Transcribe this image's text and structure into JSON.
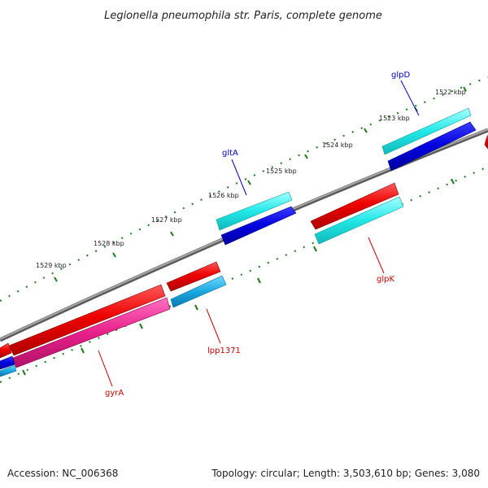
{
  "title": "Legionella pneumophila str. Paris, complete genome",
  "footer": {
    "accession": "Accession: NC_006368",
    "summary": "Topology: circular; Length: 3,503,610 bp; Genes: 3,080"
  },
  "ticks": [
    {
      "label": "1522 kbp"
    },
    {
      "label": "1523 kbp"
    },
    {
      "label": "1524 kbp"
    },
    {
      "label": "1525 kbp"
    },
    {
      "label": "1526 kbp"
    },
    {
      "label": "1527 kbp"
    },
    {
      "label": "1528 kbp"
    },
    {
      "label": "1529 kbp"
    }
  ],
  "genes": [
    {
      "name": "glpD",
      "strand": "forward",
      "color": "#0000cc"
    },
    {
      "name": "gltA",
      "strand": "forward",
      "color": "#0000cc"
    },
    {
      "name": "glpK",
      "strand": "reverse",
      "color": "#cc0000"
    },
    {
      "name": "lpp1371",
      "strand": "reverse",
      "color": "#cc0000"
    },
    {
      "name": "gyrA",
      "strand": "reverse",
      "color": "#cc0000"
    }
  ],
  "colors": {
    "backbone": "#808080",
    "tick": "#1a7a1a",
    "feature_forward_cds": "#22e8e8",
    "feature_forward_gene": "#0000e0",
    "feature_reverse_gene": "#ee0000",
    "feature_reverse_cds_cyan": "#22dddd",
    "feature_reverse_cds_blue": "#1aa8e0",
    "feature_reverse_cds_pink": "#e8208a"
  }
}
